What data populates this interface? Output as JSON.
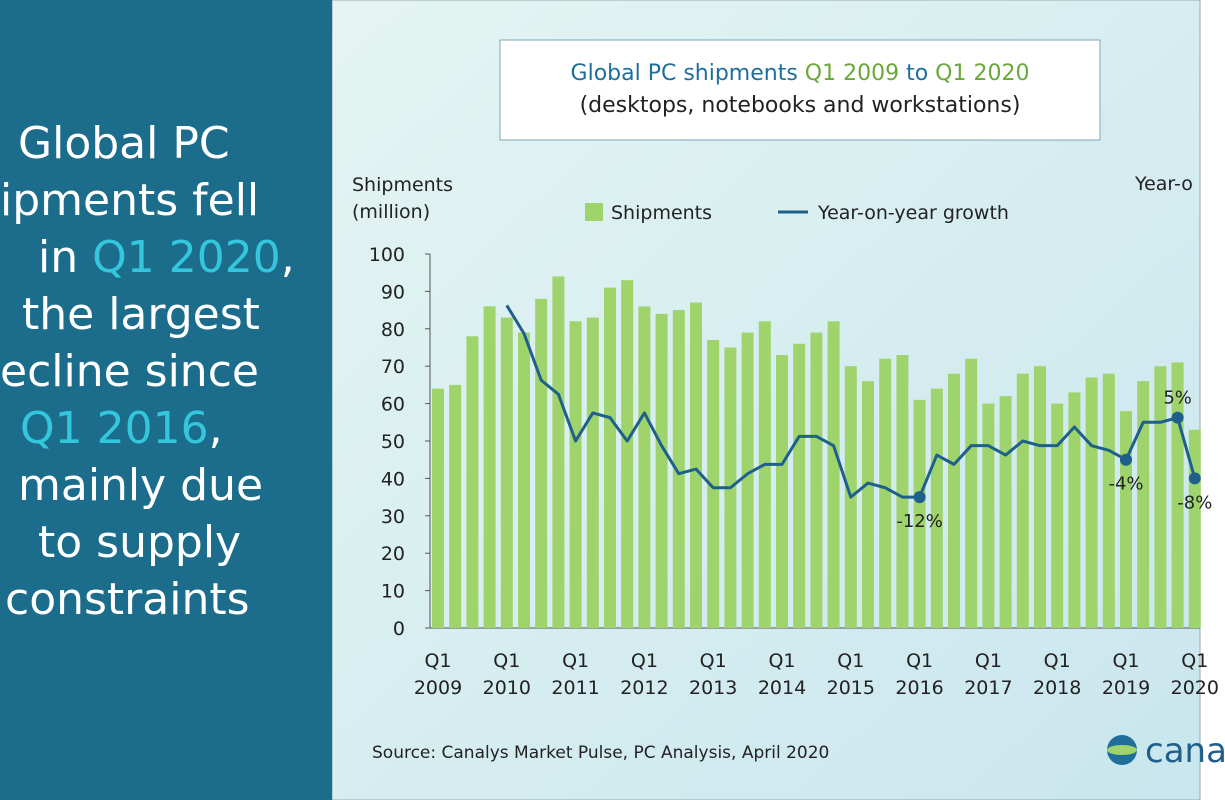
{
  "panel": {
    "lines": [
      [
        {
          "text": "Global PC"
        }
      ],
      [
        {
          "text": "ipments fell"
        }
      ],
      [
        {
          "text": "in "
        },
        {
          "text": "Q1 2020",
          "highlight": true
        },
        {
          "text": ","
        }
      ],
      [
        {
          "text": "the largest"
        }
      ],
      [
        {
          "text": "ecline since"
        }
      ],
      [
        {
          "text": "Q1 2016",
          "highlight": true
        },
        {
          "text": ","
        }
      ],
      [
        {
          "text": "mainly due"
        }
      ],
      [
        {
          "text": "to supply"
        }
      ],
      [
        {
          "text": "constraints"
        }
      ]
    ]
  },
  "chart_data": {
    "type": "bar",
    "title": [
      {
        "text": "Global PC shipments ",
        "color": "#1f6f9a"
      },
      {
        "text": "Q1 2009",
        "color": "#6aa83a"
      },
      {
        "text": " to ",
        "color": "#1f6f9a"
      },
      {
        "text": "Q1 2020",
        "color": "#6aa83a"
      }
    ],
    "subtitle": "(desktops, notebooks and workstations)",
    "ylabel": "Shipments (million)",
    "y2label": "Year-o",
    "categories": [
      "Q1 2009",
      null,
      null,
      null,
      "Q1 2010",
      null,
      null,
      null,
      "Q1 2011",
      null,
      null,
      null,
      "Q1 2012",
      null,
      null,
      null,
      "Q1 2013",
      null,
      null,
      null,
      "Q1 2014",
      null,
      null,
      null,
      "Q1 2015",
      null,
      null,
      null,
      "Q1 2016",
      null,
      null,
      null,
      "Q1 2017",
      null,
      null,
      null,
      "Q1 2018",
      null,
      null,
      null,
      "Q1 2019",
      null,
      null,
      null,
      "Q1 2020"
    ],
    "series": [
      {
        "name": "Shipments",
        "color": "#9fd46c",
        "values": [
          64,
          65,
          78,
          86,
          83,
          79,
          88,
          94,
          82,
          83,
          91,
          93,
          86,
          84,
          85,
          87,
          77,
          75,
          79,
          82,
          73,
          76,
          79,
          82,
          70,
          66,
          72,
          73,
          61,
          64,
          68,
          72,
          60,
          62,
          68,
          70,
          60,
          63,
          67,
          68,
          58,
          66,
          70,
          71,
          53
        ]
      },
      {
        "name": "Year-on-year growth",
        "color": "#1f5f8b",
        "type": "line",
        "axis": "y2",
        "values": [
          null,
          null,
          null,
          null,
          29,
          23,
          13,
          10,
          0,
          6,
          5,
          0,
          6,
          -1,
          -7,
          -6,
          -10,
          -10,
          -7,
          -5,
          -5,
          1,
          1,
          -1,
          -12,
          -9,
          -10,
          -12,
          -12,
          -3,
          -5,
          -1,
          -1,
          -3,
          0,
          -1,
          -1,
          3,
          -1,
          -2,
          -4,
          4,
          4,
          5,
          -8
        ],
        "value_labels": [
          null,
          null,
          null,
          null,
          null,
          null,
          null,
          null,
          null,
          null,
          null,
          null,
          null,
          null,
          null,
          null,
          null,
          null,
          null,
          null,
          null,
          null,
          null,
          null,
          null,
          null,
          null,
          null,
          "-12%",
          null,
          null,
          null,
          null,
          null,
          null,
          null,
          null,
          null,
          null,
          null,
          "-4%",
          null,
          null,
          "5%",
          "-8%"
        ]
      }
    ],
    "ylim": [
      0,
      100
    ],
    "yticks": [
      0,
      10,
      20,
      30,
      40,
      50,
      60,
      70,
      80,
      90,
      100
    ],
    "y2lim": [
      -40,
      40
    ],
    "legend": "top"
  },
  "source": "Source: Canalys Market Pulse, PC Analysis, April 2020",
  "logo": "cana"
}
